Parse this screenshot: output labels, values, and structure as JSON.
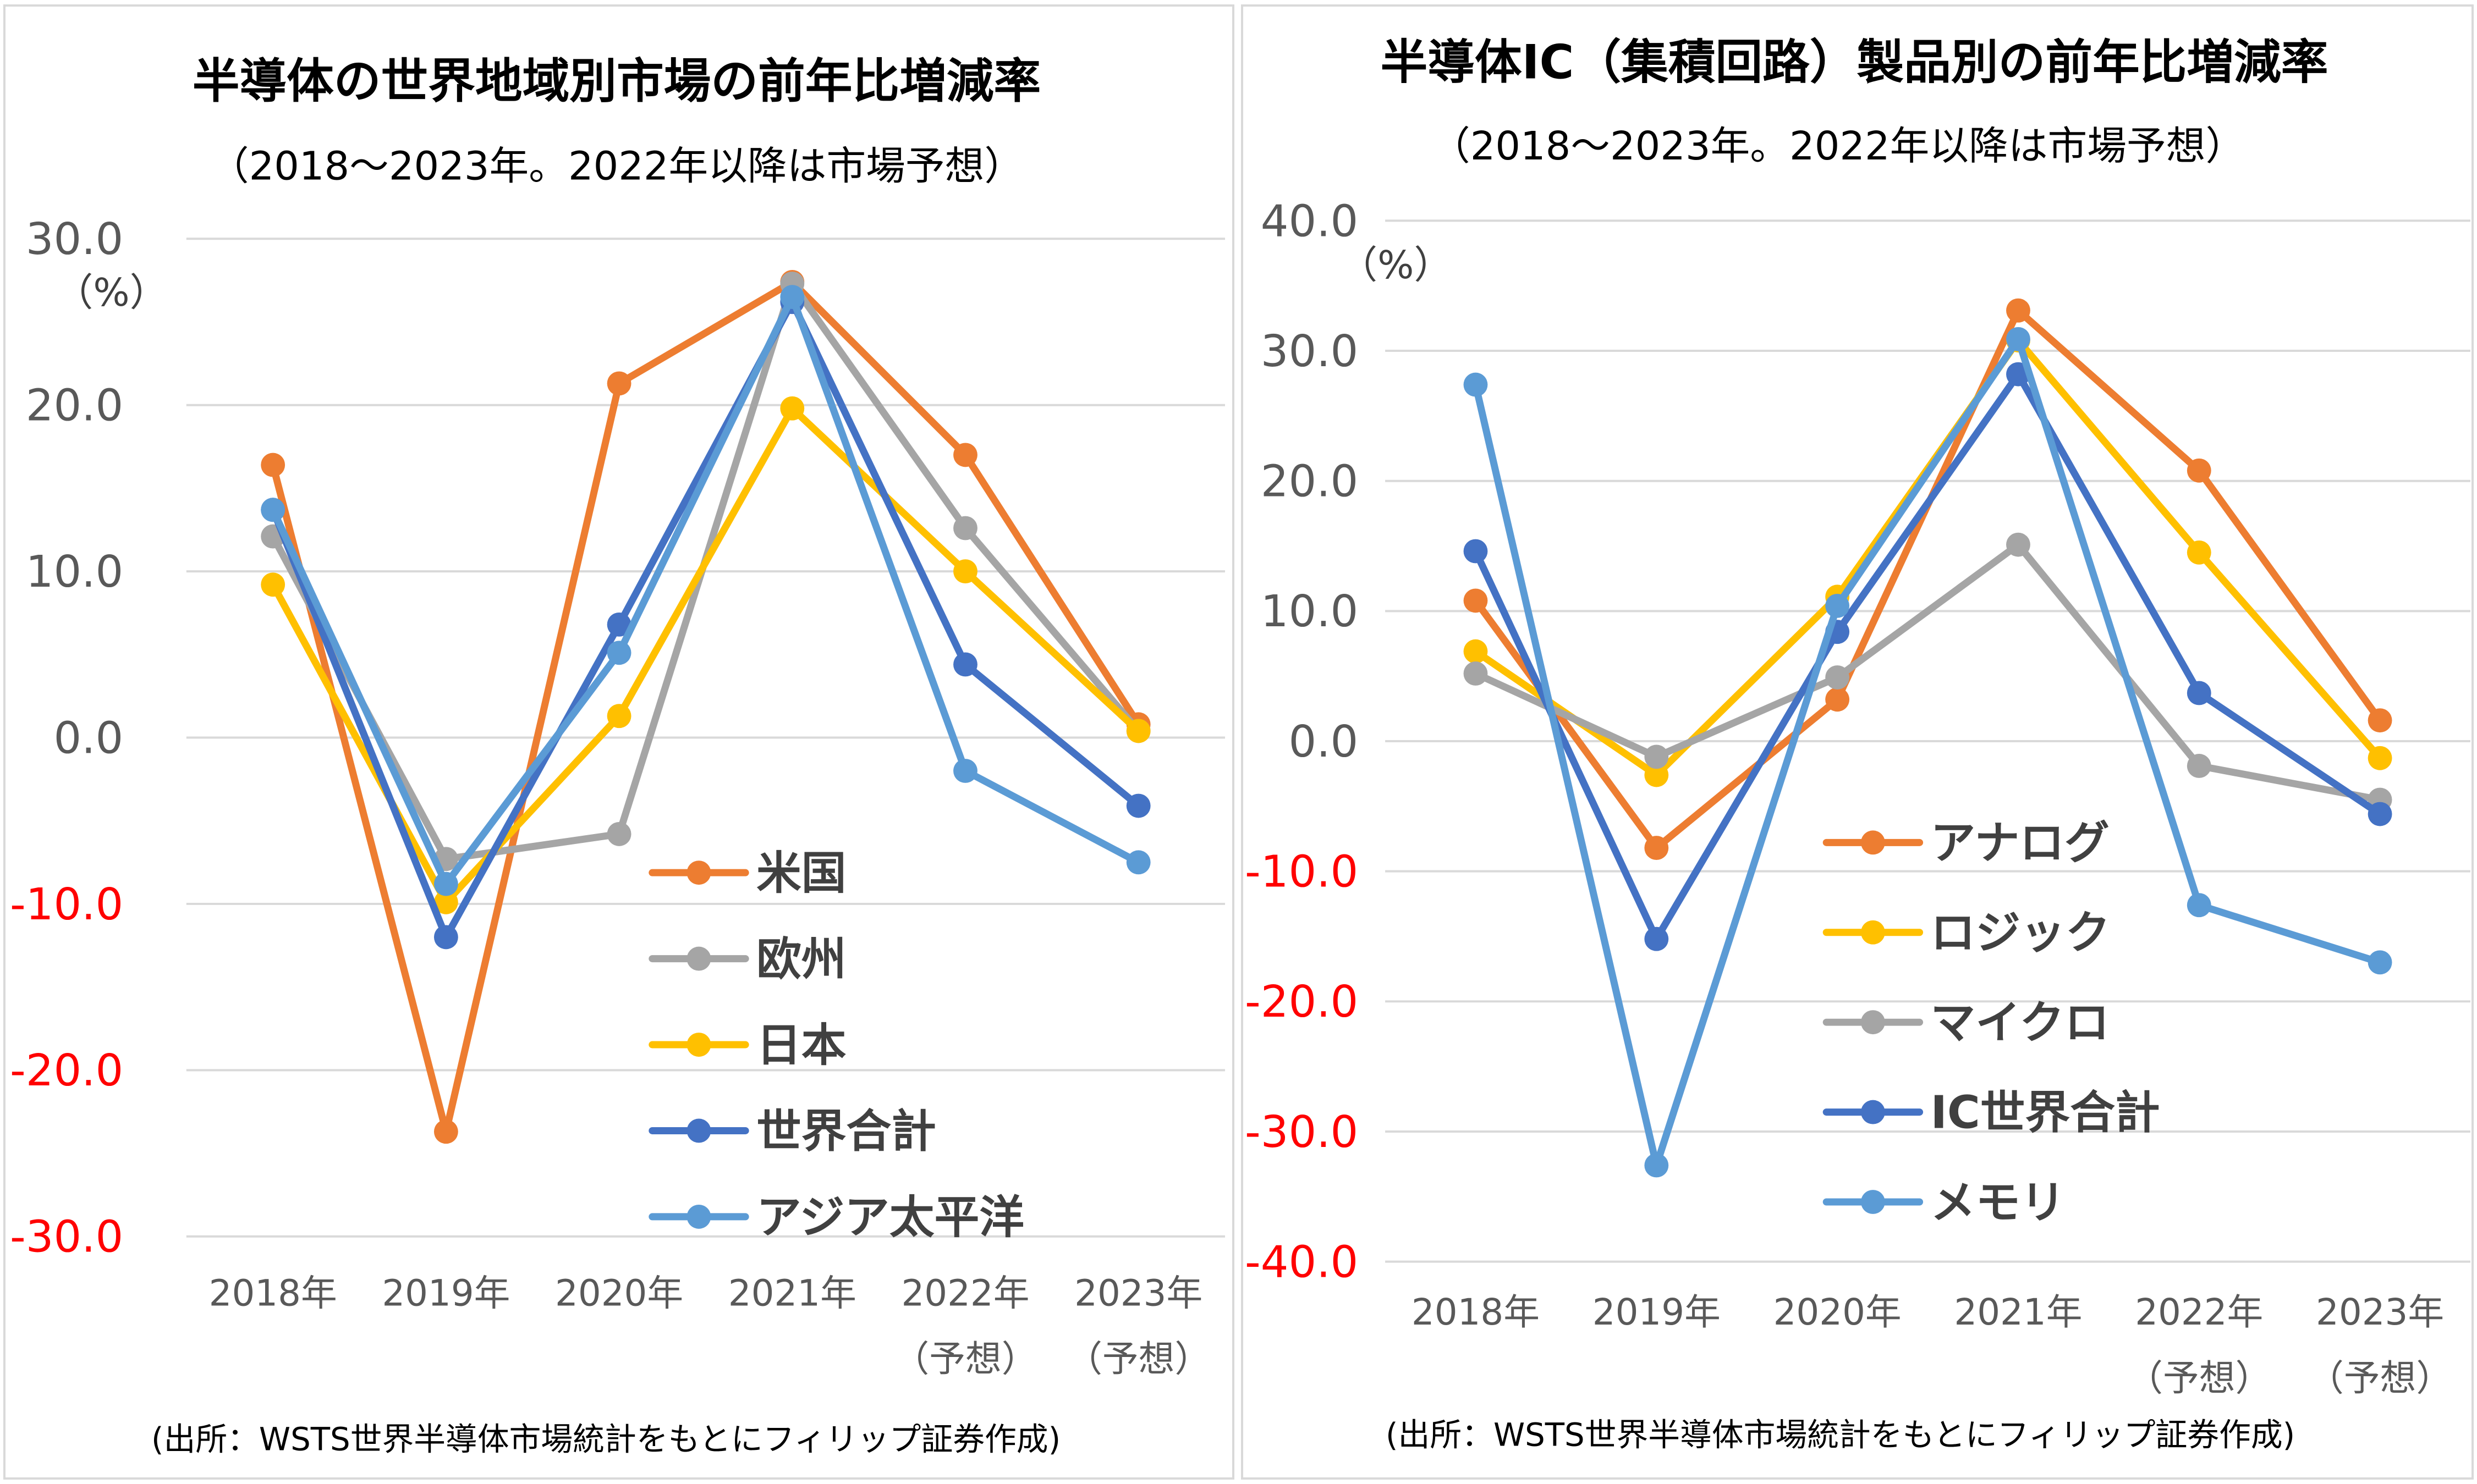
{
  "chart_data": [
    {
      "type": "line",
      "title": "半導体の世界地域別市場の前年比増減率",
      "subtitle": "（2018～2023年。2022年以降は市場予想）",
      "unit": "（%）",
      "categories": [
        "2018年",
        "2019年",
        "2020年",
        "2021年",
        "2022年",
        "2023年"
      ],
      "category_notes": [
        "",
        "",
        "",
        "",
        "（予想）",
        "（予想）"
      ],
      "ylim": [
        -30,
        30
      ],
      "yticks": [
        "30.0",
        "20.0",
        "10.0",
        "0.0",
        "-10.0",
        "-20.0",
        "-30.0"
      ],
      "grid": true,
      "legend_position": "bottom-right",
      "series": [
        {
          "name": "米国",
          "color": "#ED7D31",
          "values": [
            16.4,
            -23.7,
            21.3,
            27.4,
            17.0,
            0.8
          ]
        },
        {
          "name": "欧州",
          "color": "#A5A5A5",
          "values": [
            12.1,
            -7.3,
            -5.8,
            27.3,
            12.6,
            0.4
          ]
        },
        {
          "name": "日本",
          "color": "#FFC000",
          "values": [
            9.2,
            -9.9,
            1.3,
            19.8,
            10.0,
            0.4
          ]
        },
        {
          "name": "世界合計",
          "color": "#4472C4",
          "values": [
            13.7,
            -12.0,
            6.8,
            26.2,
            4.4,
            -4.1
          ]
        },
        {
          "name": "アジア太平洋",
          "color": "#5B9BD5",
          "values": [
            13.7,
            -8.8,
            5.1,
            26.5,
            -2.0,
            -7.5
          ]
        }
      ]
    },
    {
      "type": "line",
      "title": "半導体IC（集積回路）製品別の前年比増減率",
      "subtitle": "（2018～2023年。2022年以降は市場予想）",
      "unit": "（%）",
      "categories": [
        "2018年",
        "2019年",
        "2020年",
        "2021年",
        "2022年",
        "2023年"
      ],
      "category_notes": [
        "",
        "",
        "",
        "",
        "（予想）",
        "（予想）"
      ],
      "ylim": [
        -40,
        40
      ],
      "yticks": [
        "40.0",
        "30.0",
        "20.0",
        "10.0",
        "0.0",
        "-10.0",
        "-20.0",
        "-30.0",
        "-40.0"
      ],
      "grid": true,
      "legend_position": "bottom-center",
      "series": [
        {
          "name": "アナログ",
          "color": "#ED7D31",
          "values": [
            10.8,
            -8.2,
            3.2,
            33.1,
            20.8,
            1.6
          ]
        },
        {
          "name": "ロジック",
          "color": "#FFC000",
          "values": [
            6.9,
            -2.6,
            11.1,
            30.8,
            14.5,
            -1.3
          ]
        },
        {
          "name": "マイクロ",
          "color": "#A5A5A5",
          "values": [
            5.2,
            -1.2,
            4.9,
            15.1,
            -1.9,
            -4.5
          ]
        },
        {
          "name": "IC世界合計",
          "color": "#4472C4",
          "values": [
            14.6,
            -15.2,
            8.4,
            28.2,
            3.7,
            -5.6
          ]
        },
        {
          "name": "メモリ",
          "color": "#5B9BD5",
          "values": [
            27.4,
            -32.6,
            10.4,
            30.9,
            -12.6,
            -17.0
          ]
        }
      ]
    }
  ],
  "source_note": "(出所：WSTS世界半導体市場統計をもとにフィリップ証券作成)"
}
